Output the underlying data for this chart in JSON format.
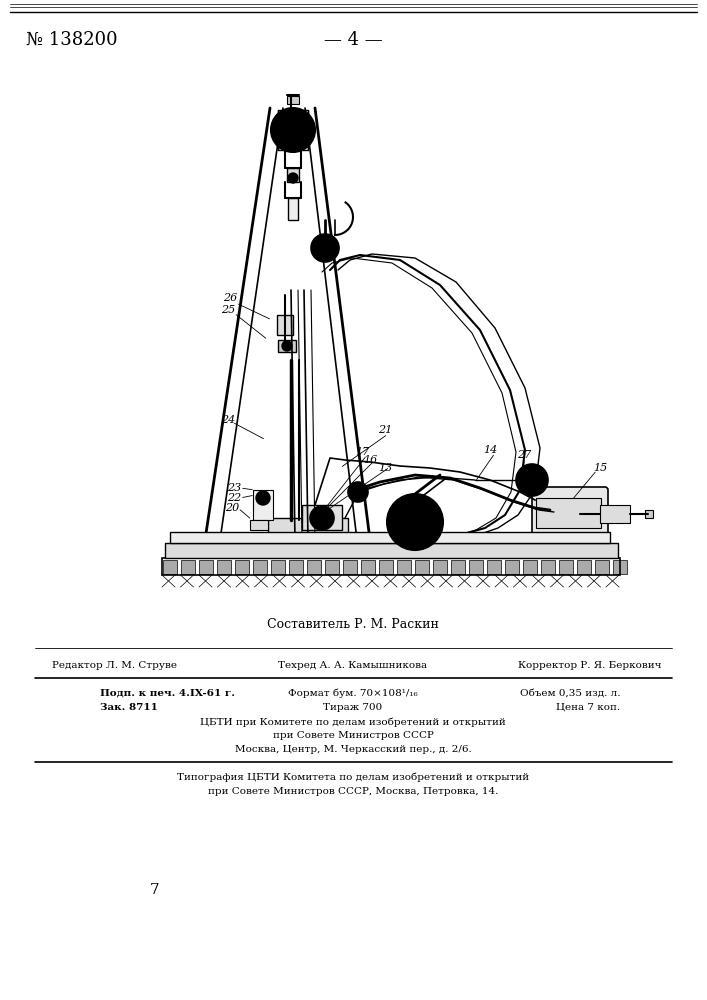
{
  "background_color": "#ffffff",
  "header_number": "№ 138200",
  "header_page": "— 4 —",
  "composer_line": "Составитель Р. М. Раскин",
  "cbti_line1": "ЦБТИ при Комитете по делам изобретений и открытий",
  "cbti_line2": "при Совете Министров СССР",
  "cbti_line3": "Москва, Центр, М. Черкасский пер., д. 2/6.",
  "typo_line1": "Типография ЦБТИ Комитета по делам изобретений и открытий",
  "typo_line2": "при Совете Министров СССР, Москва, Петровка, 14.",
  "page_number": "7"
}
